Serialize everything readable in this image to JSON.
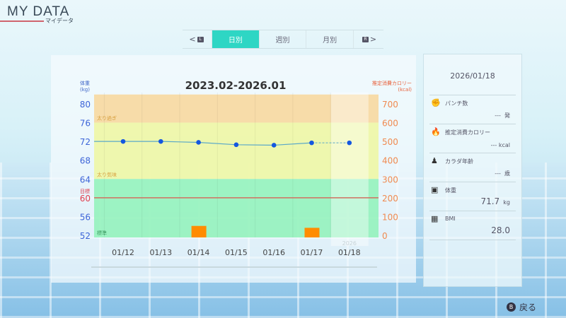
{
  "header": {
    "title": "MY DATA",
    "subtitle": "マイデータ"
  },
  "tabs": {
    "prev_button": "L",
    "next_button": "R",
    "items": [
      {
        "label": "日別",
        "active": true
      },
      {
        "label": "週別"
      },
      {
        "label": "月別"
      }
    ]
  },
  "chart_data": {
    "type": "line",
    "title": "2023.02-2026.01",
    "ylabel": "体重\n(kg)",
    "ylabel_left_lines": [
      "体重",
      "(kg)"
    ],
    "ylabel_right_lines": [
      "推定消費カロリー",
      "(kcal)"
    ],
    "categories": [
      "01/12",
      "01/13",
      "01/14",
      "01/15",
      "01/16",
      "01/17",
      "01/18"
    ],
    "year_label": "2026",
    "yticks_left": [
      80,
      76,
      72,
      68,
      64,
      60,
      56,
      52
    ],
    "yticks_right": [
      700,
      600,
      500,
      400,
      300,
      200,
      100,
      0
    ],
    "ylim_left": [
      52,
      80
    ],
    "ylim_right": [
      0,
      700
    ],
    "target": {
      "label": "目標",
      "value": 60
    },
    "bands": [
      {
        "label": "太り過ぎ",
        "from": 76,
        "to": 82,
        "color": "#f8d79a"
      },
      {
        "label": "太り気味",
        "from": 64,
        "to": 76,
        "color": "#eef7a0"
      },
      {
        "label": "標準",
        "from": 51.5,
        "to": 64,
        "color": "#8ff2b8"
      }
    ],
    "series": [
      {
        "name": "体重",
        "type": "line",
        "values": [
          72.0,
          72.0,
          71.8,
          71.3,
          71.2,
          71.7,
          71.7
        ],
        "start_value": 72.0,
        "projected_last": true,
        "color": "#1457e0"
      },
      {
        "name": "推定消費カロリー",
        "type": "bar",
        "values": [
          0,
          0,
          50,
          0,
          0,
          40,
          0
        ],
        "color": "#ff8c00"
      }
    ]
  },
  "side": {
    "date": "2026/01/18",
    "items": [
      {
        "label": "パンチ数",
        "value": "---",
        "unit": "発",
        "icon": "glove-icon"
      },
      {
        "label": "推定消費カロリー",
        "value": "---",
        "unit": "kcal",
        "icon": "flame-icon"
      },
      {
        "label": "カラダ年齢",
        "value": "---",
        "unit": "歳",
        "icon": "body-icon"
      },
      {
        "label": "体重",
        "value": "71.7",
        "unit": "kg",
        "icon": "scale-icon"
      },
      {
        "label": "BMI",
        "value": "28.0",
        "unit": "",
        "icon": "calculator-icon"
      }
    ]
  },
  "footer": {
    "back_button": "B",
    "back_label": "戻る"
  }
}
